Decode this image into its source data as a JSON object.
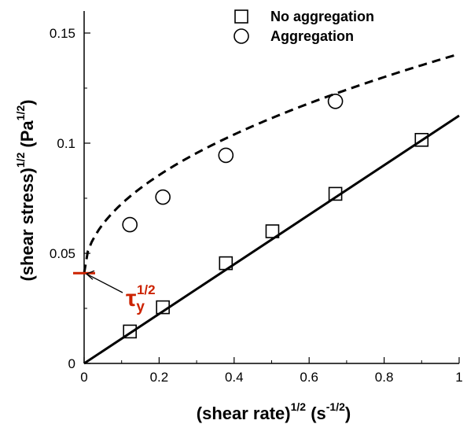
{
  "chart_data": {
    "type": "scatter",
    "title": "",
    "xlabel": {
      "main": "(shear rate)",
      "exp1": "1/2",
      "unit": " (s",
      "exp2": "-1/2",
      "close": ")"
    },
    "ylabel": {
      "main": "(shear stress)",
      "exp1": "1/2",
      "unit": " (Pa",
      "exp2": "1/2",
      "close": ")"
    },
    "xlim": [
      0,
      1
    ],
    "ylim": [
      0,
      0.16
    ],
    "xticks": [
      0,
      0.2,
      0.4,
      0.6,
      0.8,
      1
    ],
    "xtick_labels": [
      "0",
      "0.2",
      "0.4",
      "0.6",
      "0.8",
      "1"
    ],
    "yticks": [
      0,
      0.05,
      0.1,
      0.15
    ],
    "ytick_labels": [
      "0",
      "0.05",
      "0.1",
      "0.15"
    ],
    "grid": false,
    "legend_position": "top-right",
    "series": [
      {
        "name": "No aggregation",
        "marker": "square",
        "x": [
          0.122,
          0.21,
          0.378,
          0.502,
          0.67,
          0.9
        ],
        "y": [
          0.0145,
          0.0255,
          0.0455,
          0.06,
          0.077,
          0.1015
        ],
        "fit_line": {
          "style": "solid",
          "x": [
            0,
            1
          ],
          "y": [
            0,
            0.1125
          ]
        }
      },
      {
        "name": "Aggregation",
        "marker": "circle",
        "x": [
          0.122,
          0.21,
          0.378,
          0.67
        ],
        "y": [
          0.063,
          0.0755,
          0.0945,
          0.119
        ],
        "fit_line": {
          "style": "dashed",
          "tau": 0.041,
          "k": 0.0995
        }
      }
    ],
    "annotations": [
      {
        "text": "τ",
        "sub": "y",
        "sup": "1/2",
        "color": "#cc2200",
        "x": 0,
        "y": 0.041
      }
    ]
  }
}
